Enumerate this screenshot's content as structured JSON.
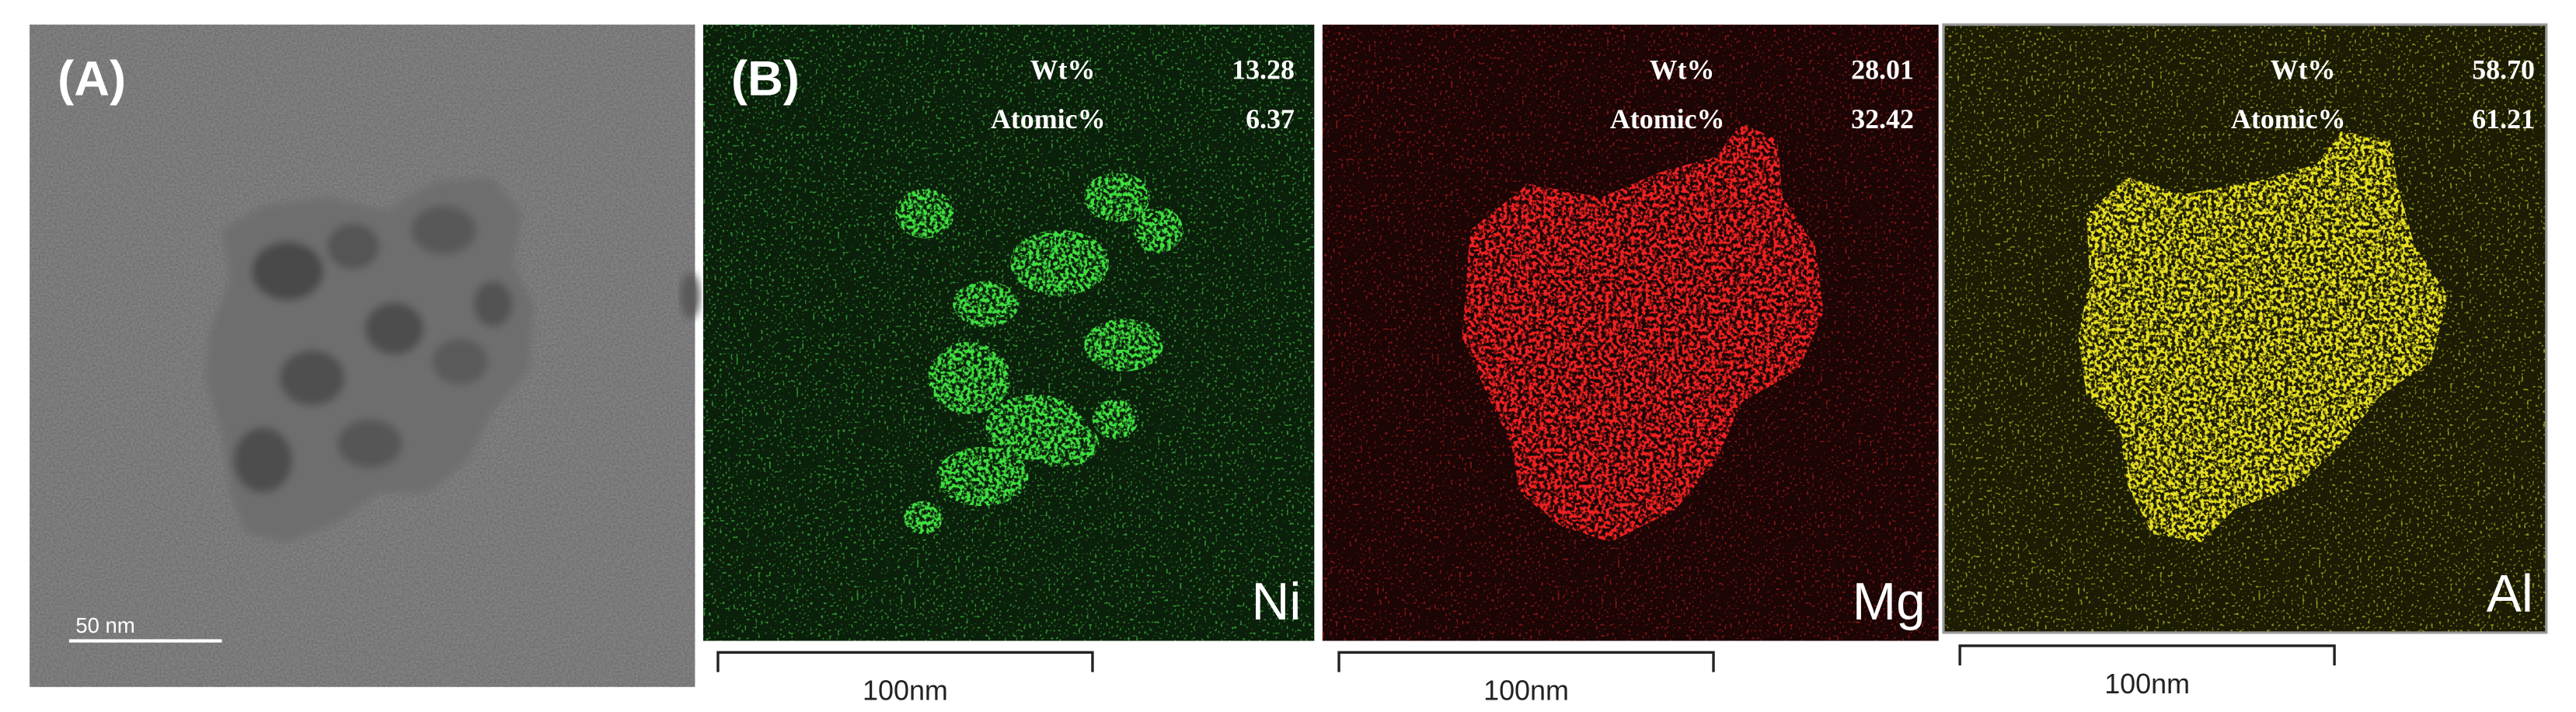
{
  "panel_a": {
    "label": "(A)",
    "scale_bar": "50 nm"
  },
  "panel_b": {
    "label": "(B)",
    "maps": [
      {
        "element": "Ni",
        "wt_label": "Wt%",
        "wt": "13.28",
        "atomic_label": "Atomic%",
        "atomic": "6.37",
        "scale_bar": "100nm"
      },
      {
        "element": "Mg",
        "wt_label": "Wt%",
        "wt": "28.01",
        "atomic_label": "Atomic%",
        "atomic": "32.42",
        "scale_bar": "100nm"
      },
      {
        "element": "Al",
        "wt_label": "Wt%",
        "wt": "58.70",
        "atomic_label": "Atomic%",
        "atomic": "61.21",
        "scale_bar": "100nm"
      }
    ]
  }
}
